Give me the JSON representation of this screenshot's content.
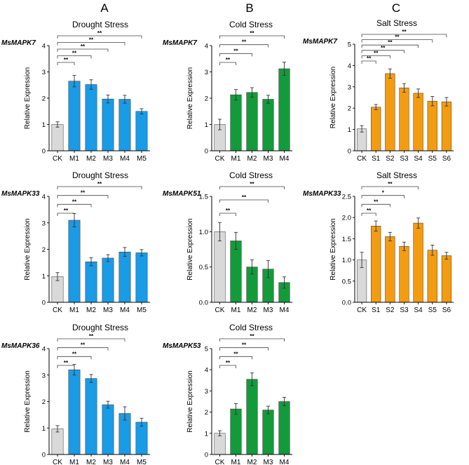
{
  "column_headers": [
    "A",
    "B",
    "C"
  ],
  "colors": {
    "control": "#d9d9d9",
    "drought": "#1a9be6",
    "cold": "#139a3b",
    "salt": "#f39c12"
  },
  "chart_data": [
    {
      "id": "a1",
      "type": "bar",
      "panel": "A",
      "gene": "MsMAPK7",
      "title": "Drought Stress",
      "ylabel": "Relative Expression",
      "ylim": [
        0,
        4
      ],
      "yticks": [
        "0",
        "1",
        "2",
        "3",
        "4"
      ],
      "categories": [
        "CK",
        "M1",
        "M2",
        "M3",
        "M4",
        "M5"
      ],
      "values": [
        1.0,
        2.65,
        2.52,
        1.97,
        1.96,
        1.5
      ],
      "errors": [
        0.1,
        0.22,
        0.18,
        0.15,
        0.15,
        0.1
      ],
      "colors": [
        "control",
        "drought",
        "drought",
        "drought",
        "drought",
        "drought"
      ],
      "brackets": [
        {
          "to": 1,
          "label": "**"
        },
        {
          "to": 2,
          "label": "**"
        },
        {
          "to": 3,
          "label": "**"
        },
        {
          "to": 4,
          "label": "**"
        },
        {
          "to": 5,
          "label": "**"
        }
      ]
    },
    {
      "id": "b1",
      "type": "bar",
      "panel": "B",
      "gene": "MsMAPK7",
      "title": "Cold Stress",
      "ylabel": "Relative Expression",
      "ylim": [
        0,
        4
      ],
      "yticks": [
        "0",
        "1",
        "2",
        "3",
        "4"
      ],
      "categories": [
        "CK",
        "M1",
        "M2",
        "M3",
        "M4"
      ],
      "values": [
        1.0,
        2.13,
        2.22,
        1.96,
        3.12
      ],
      "errors": [
        0.2,
        0.2,
        0.18,
        0.15,
        0.25
      ],
      "colors": [
        "control",
        "cold",
        "cold",
        "cold",
        "cold"
      ],
      "brackets": [
        {
          "to": 1,
          "label": "**"
        },
        {
          "to": 2,
          "label": "**"
        },
        {
          "to": 3,
          "label": "**"
        },
        {
          "to": 4,
          "label": "**"
        }
      ]
    },
    {
      "id": "c1",
      "type": "bar",
      "panel": "C",
      "gene": "MsMAPK7",
      "title": "Salt Stress",
      "ylabel": "Relative Expression",
      "ylim": [
        0,
        5
      ],
      "yticks": [
        "0",
        "1",
        "2",
        "3",
        "4",
        "5"
      ],
      "categories": [
        "CK",
        "S1",
        "S2",
        "S3",
        "S4",
        "S5",
        "S6"
      ],
      "values": [
        1.03,
        2.05,
        3.62,
        2.95,
        2.7,
        2.33,
        2.3
      ],
      "errors": [
        0.15,
        0.12,
        0.22,
        0.2,
        0.2,
        0.22,
        0.2
      ],
      "colors": [
        "control",
        "salt",
        "salt",
        "salt",
        "salt",
        "salt",
        "salt"
      ],
      "brackets": [
        {
          "to": 1,
          "label": "**"
        },
        {
          "to": 2,
          "label": "**"
        },
        {
          "to": 3,
          "label": "**"
        },
        {
          "to": 4,
          "label": "**"
        },
        {
          "to": 5,
          "label": "**"
        },
        {
          "to": 6,
          "label": "**"
        }
      ]
    },
    {
      "id": "a2",
      "type": "bar",
      "panel": "A",
      "gene": "MsMAPK33",
      "title": "Drought Stress",
      "ylabel": "Relative Expression",
      "ylim": [
        0,
        4
      ],
      "yticks": [
        "0",
        "1",
        "2",
        "3",
        "4"
      ],
      "categories": [
        "CK",
        "M1",
        "M2",
        "M3",
        "M4",
        "M5"
      ],
      "values": [
        0.97,
        3.1,
        1.53,
        1.67,
        1.9,
        1.87
      ],
      "errors": [
        0.15,
        0.25,
        0.15,
        0.13,
        0.17,
        0.12
      ],
      "colors": [
        "control",
        "drought",
        "drought",
        "drought",
        "drought",
        "drought"
      ],
      "brackets": [
        {
          "to": 1,
          "label": "**"
        },
        {
          "to": 2,
          "label": "**"
        },
        {
          "to": 3,
          "label": "**"
        },
        {
          "to": 5,
          "label": "**"
        }
      ]
    },
    {
      "id": "b2",
      "type": "bar",
      "panel": "B",
      "gene": "MsMAPK51",
      "title": "Cold Stress",
      "ylabel": "Relative Expression",
      "ylim": [
        0,
        1.5
      ],
      "yticks": [
        "0.0",
        "0.5",
        "1.0",
        "1.5"
      ],
      "categories": [
        "CK",
        "M1",
        "M2",
        "M3",
        "M4"
      ],
      "values": [
        1.0,
        0.87,
        0.5,
        0.47,
        0.28
      ],
      "errors": [
        0.13,
        0.12,
        0.1,
        0.12,
        0.08
      ],
      "colors": [
        "control",
        "cold",
        "cold",
        "cold",
        "cold"
      ],
      "brackets": [
        {
          "to": 1,
          "label": "**"
        },
        {
          "to": 3,
          "label": "**"
        },
        {
          "to": 4,
          "label": "**"
        }
      ]
    },
    {
      "id": "c2",
      "type": "bar",
      "panel": "C",
      "gene": "MsMAPK33",
      "title": "Salt Stress",
      "ylabel": "Relative Expression",
      "ylim": [
        0,
        2.5
      ],
      "yticks": [
        "0.0",
        "0.5",
        "1.0",
        "1.5",
        "2.0",
        "2.5"
      ],
      "categories": [
        "CK",
        "S1",
        "S2",
        "S3",
        "S4",
        "S5",
        "S6"
      ],
      "values": [
        1.0,
        1.8,
        1.55,
        1.32,
        1.87,
        1.23,
        1.1
      ],
      "errors": [
        0.18,
        0.12,
        0.1,
        0.1,
        0.12,
        0.12,
        0.08
      ],
      "colors": [
        "control",
        "salt",
        "salt",
        "salt",
        "salt",
        "salt",
        "salt"
      ],
      "brackets": [
        {
          "to": 1,
          "label": "**"
        },
        {
          "to": 2,
          "label": "**"
        },
        {
          "to": 3,
          "label": "*"
        },
        {
          "to": 4,
          "label": "**"
        }
      ]
    },
    {
      "id": "a3",
      "type": "bar",
      "panel": "A",
      "gene": "MsMAPK36",
      "title": "Drought Stress",
      "ylabel": "Relative Expression",
      "ylim": [
        0,
        4
      ],
      "yticks": [
        "0",
        "1",
        "2",
        "3",
        "4"
      ],
      "categories": [
        "CK",
        "M1",
        "M2",
        "M3",
        "M4",
        "M5"
      ],
      "values": [
        0.97,
        3.2,
        2.87,
        1.88,
        1.55,
        1.22
      ],
      "errors": [
        0.12,
        0.2,
        0.15,
        0.13,
        0.25,
        0.15
      ],
      "colors": [
        "control",
        "drought",
        "drought",
        "drought",
        "drought",
        "drought"
      ],
      "brackets": [
        {
          "to": 1,
          "label": "**"
        },
        {
          "to": 2,
          "label": "**"
        },
        {
          "to": 3,
          "label": "**"
        },
        {
          "to": 4,
          "label": "**"
        }
      ]
    },
    {
      "id": "b3",
      "type": "bar",
      "panel": "B",
      "gene": "MsMAPK53",
      "title": "Cold Stress",
      "ylabel": "Relative Expression",
      "ylim": [
        0,
        5
      ],
      "yticks": [
        "0",
        "1",
        "2",
        "3",
        "4",
        "5"
      ],
      "categories": [
        "CK",
        "M1",
        "M2",
        "M3",
        "M4"
      ],
      "values": [
        1.0,
        2.15,
        3.55,
        2.1,
        2.5
      ],
      "errors": [
        0.12,
        0.25,
        0.3,
        0.18,
        0.2
      ],
      "colors": [
        "control",
        "cold",
        "cold",
        "cold",
        "cold"
      ],
      "brackets": [
        {
          "to": 1,
          "label": "**"
        },
        {
          "to": 2,
          "label": "**"
        },
        {
          "to": 3,
          "label": "**"
        },
        {
          "to": 4,
          "label": "**"
        }
      ]
    }
  ]
}
